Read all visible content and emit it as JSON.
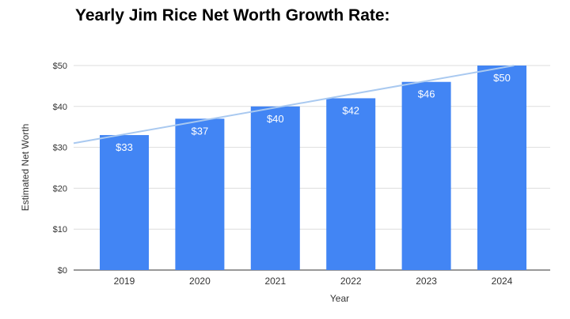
{
  "chart_data": {
    "type": "bar",
    "title": "Yearly Jim Rice Net Worth Growth Rate:",
    "xlabel": "Year",
    "ylabel": "Estimated Net Worth",
    "categories": [
      "2019",
      "2020",
      "2021",
      "2022",
      "2023",
      "2024"
    ],
    "values": [
      33,
      37,
      40,
      42,
      46,
      50
    ],
    "data_labels": [
      "$33",
      "$37",
      "$40",
      "$42",
      "$46",
      "$50"
    ],
    "ylim": [
      0,
      50
    ],
    "yticks": [
      0,
      10,
      20,
      30,
      40,
      50
    ],
    "ytick_labels": [
      "$0",
      "$10",
      "$20",
      "$30",
      "$40",
      "$50"
    ],
    "grid": true,
    "trendline": "linear",
    "colors": {
      "bar": "#4285f4",
      "trendline": "#a9c9f0",
      "grid": "#dddddd"
    }
  }
}
